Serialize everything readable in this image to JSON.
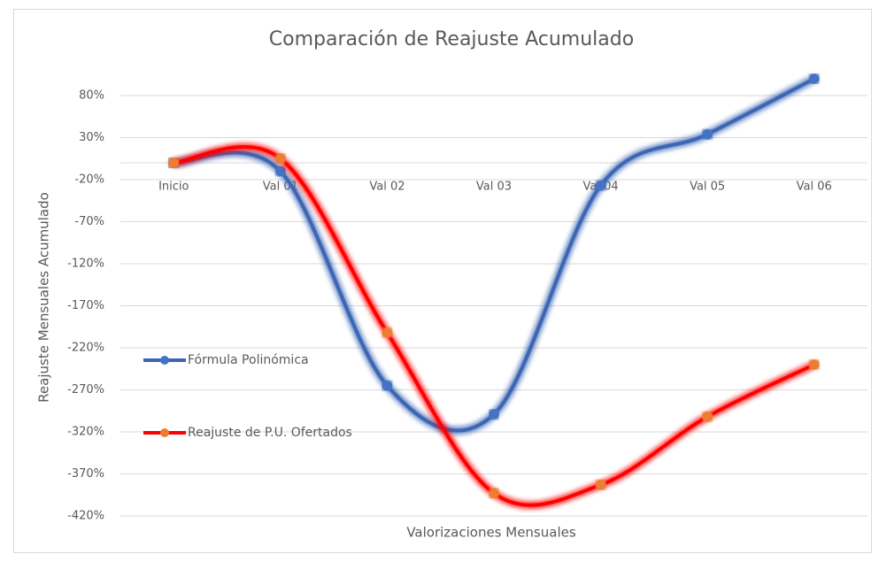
{
  "chart_data": {
    "type": "line",
    "title": "Comparación de Reajuste Acumulado",
    "x_label": "Valorizaciones Mensuales",
    "y_label": "Reajuste Mensuales Acumulado",
    "categories": [
      "Inicio",
      "Val 01",
      "Val 02",
      "Val 03",
      "Val 04",
      "Val 05",
      "Val 06"
    ],
    "series": [
      {
        "name": "Fórmula Polinómica",
        "color": "#3c66b4",
        "marker_color": "#4472c4",
        "values": [
          0,
          -10,
          -265,
          -299,
          -27,
          34,
          100
        ]
      },
      {
        "name": "Reajuste de P.U. Ofertados",
        "color": "#ff0000",
        "marker_color": "#ed7d31",
        "values": [
          0,
          5,
          -202,
          -393,
          -383,
          -302,
          -240
        ]
      }
    ],
    "ylim": [
      -420,
      100
    ],
    "yticks": [
      {
        "value": 80,
        "label": "80%"
      },
      {
        "value": 30,
        "label": "30%"
      },
      {
        "value": -20,
        "label": "-20%"
      },
      {
        "value": -70,
        "label": "-70%"
      },
      {
        "value": -120,
        "label": "-120%"
      },
      {
        "value": -170,
        "label": "-170%"
      },
      {
        "value": -220,
        "label": "-220%"
      },
      {
        "value": -270,
        "label": "-270%"
      },
      {
        "value": -320,
        "label": "-320%"
      },
      {
        "value": -370,
        "label": "-370%"
      },
      {
        "value": -420,
        "label": "-420%"
      }
    ],
    "grid": true,
    "smooth": true,
    "legend": "left"
  }
}
